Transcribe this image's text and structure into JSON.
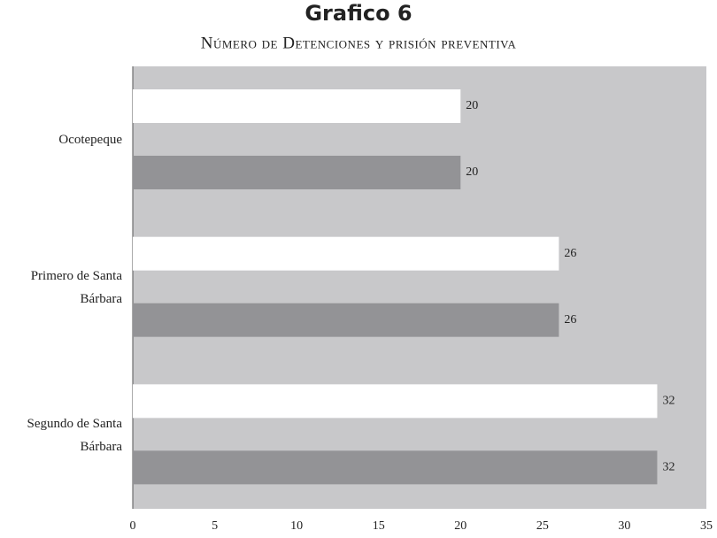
{
  "chart_data": {
    "type": "bar",
    "orientation": "horizontal",
    "title": "Grafico 6",
    "subtitle": "Número de Detenciones y prisión preventiva",
    "categories": [
      "Ocotepeque",
      "Primero de Santa Bárbara",
      "Segundo de Santa Bárbara"
    ],
    "series": [
      {
        "color": "#ffffff",
        "values": [
          20,
          26,
          32
        ]
      },
      {
        "color": "#939396",
        "values": [
          20,
          26,
          32
        ]
      }
    ],
    "xlim": [
      0,
      35
    ],
    "xticks": [
      0,
      5,
      10,
      15,
      20,
      25,
      30,
      35
    ],
    "plot_background": "#c8c8ca",
    "grid": false
  }
}
